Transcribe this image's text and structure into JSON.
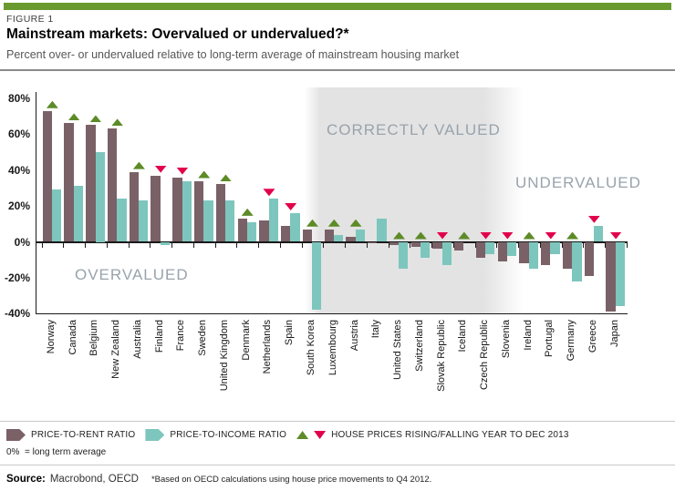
{
  "figure_label": "FIGURE 1",
  "title": "Mainstream markets: Overvalued or undervalued?*",
  "subtitle": "Percent over- or undervalued relative to long-term average of mainstream housing market",
  "zones": {
    "overvalued": "OVERVALUED",
    "correctly_valued": "CORRECTLY VALUED",
    "undervalued": "UNDERVALUED"
  },
  "chart_data": {
    "type": "bar",
    "title": "Mainstream markets: Overvalued or undervalued?*",
    "ylabel": "Percent over- or undervalued",
    "y_ticks": [
      80,
      60,
      40,
      20,
      0,
      -20,
      -40
    ],
    "y_tick_suffix": "%",
    "ylim": [
      -40,
      80
    ],
    "grid": false,
    "categories": [
      "Norway",
      "Canada",
      "Belgium",
      "New Zealand",
      "Australia",
      "Finland",
      "France",
      "Sweden",
      "United Kingdom",
      "Denmark",
      "Netherlands",
      "Spain",
      "South Korea",
      "Luxembourg",
      "Austria",
      "Italy",
      "United States",
      "Switzerland",
      "Slovak Republic",
      "Iceland",
      "Czech Republic",
      "Slovenia",
      "Ireland",
      "Portugal",
      "Germany",
      "Greece",
      "Japan"
    ],
    "series": [
      {
        "name": "PRICE-TO-RENT RATIO",
        "color": "#7a6167",
        "values": [
          73,
          66,
          65,
          63,
          39,
          37,
          36,
          34,
          32,
          13,
          12,
          9,
          7,
          7,
          3,
          -1,
          -2,
          -3,
          -4,
          -5,
          -9,
          -11,
          -12,
          -13,
          -15,
          -19,
          -39
        ]
      },
      {
        "name": "PRICE-TO-INCOME RATIO",
        "color": "#7dc6bd",
        "values": [
          29,
          31,
          50,
          24,
          23,
          -2,
          34,
          23,
          23,
          11,
          24,
          16,
          -38,
          4,
          7,
          13,
          -15,
          -9,
          -13,
          0,
          -7,
          -8,
          -15,
          -7,
          -22,
          9,
          -36
        ]
      }
    ],
    "house_price_direction_year_to_dec_2013": [
      "up",
      "up",
      "up",
      "up",
      "up",
      "down",
      "down",
      "up",
      "up",
      "up",
      "down",
      "down",
      "up",
      "up",
      "up",
      "none",
      "up",
      "up",
      "down",
      "up",
      "down",
      "down",
      "up",
      "down",
      "up",
      "down",
      "down"
    ],
    "shaded_zone_label": "CORRECTLY VALUED",
    "zone_labels": [
      "OVERVALUED",
      "CORRECTLY VALUED",
      "UNDERVALUED"
    ],
    "legend_position": "bottom"
  },
  "legend": {
    "items": [
      {
        "label": "PRICE-TO-RENT RATIO",
        "color": "#7a6167",
        "swatch": "arrow-right"
      },
      {
        "label": "PRICE-TO-INCOME RATIO",
        "color": "#7dc6bd",
        "swatch": "arrow-right"
      },
      {
        "label": "HOUSE PRICES RISING/FALLING YEAR TO DEC 2013",
        "up_color": "#5d8b27",
        "down_color": "#e2004b"
      }
    ],
    "note": "0%  = long term average"
  },
  "footer": {
    "source_label": "Source:",
    "source_value": "Macrobond, OECD",
    "note": "*Based on OECD calculations using house price movements to Q4 2012."
  },
  "colors": {
    "header_bar": "#699a30",
    "price_to_rent": "#7a6167",
    "price_to_income": "#7dc6bd",
    "rising": "#5d8b27",
    "falling": "#e2004b",
    "band": "#e3e3e3",
    "zone_text": "#98a3ac"
  }
}
